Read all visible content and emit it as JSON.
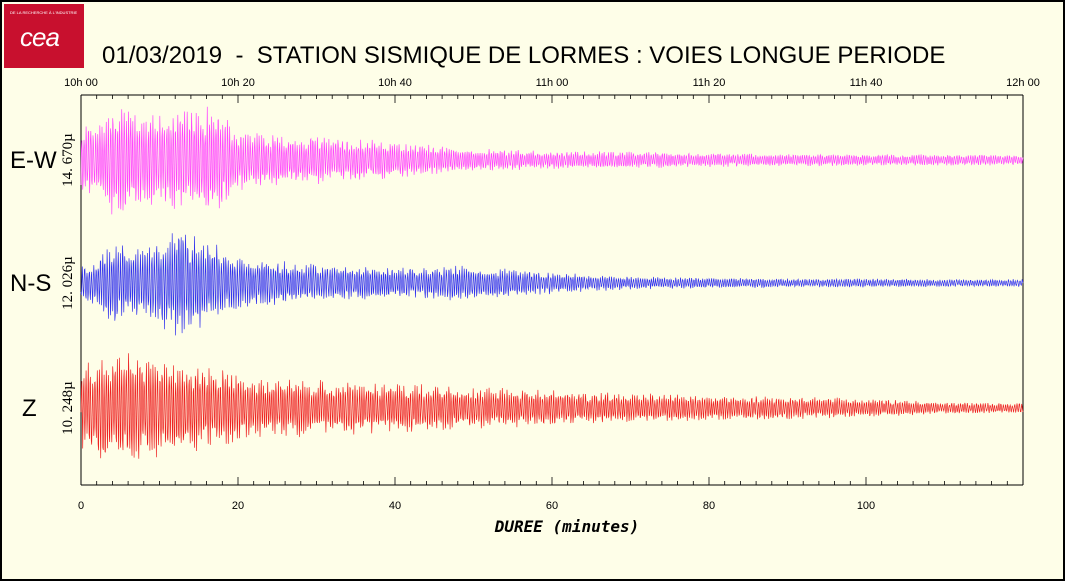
{
  "logo": {
    "text": "cea",
    "tagline": "DE LA RECHERCHE À L'INDUSTRIE"
  },
  "title": "01/03/2019  -  STATION SISMIQUE DE LORMES : VOIES LONGUE PERIODE",
  "chart_data": {
    "type": "line",
    "title": "01/03/2019  -  STATION SISMIQUE DE LORMES : VOIES LONGUE PERIODE",
    "xlabel": "DUREE  (minutes)",
    "xlim": [
      0,
      120
    ],
    "x_ticks": [
      0,
      20,
      40,
      60,
      80,
      100
    ],
    "top_time_ticks": [
      "10h 00",
      "10h 20",
      "10h 40",
      "11h 00",
      "11h 20",
      "11h 40",
      "12h 00"
    ],
    "series": [
      {
        "name": "E-W",
        "scale": "14. 670µ",
        "color": "#ff44ff",
        "envelope": {
          "t": [
            0,
            2,
            5,
            8,
            12,
            17,
            20,
            25,
            30,
            40,
            50,
            60,
            70,
            80,
            90,
            100,
            110,
            120
          ],
          "amp": [
            0.55,
            0.6,
            1.0,
            0.7,
            0.8,
            0.85,
            0.5,
            0.4,
            0.38,
            0.28,
            0.18,
            0.14,
            0.13,
            0.11,
            0.1,
            0.09,
            0.09,
            0.08
          ]
        }
      },
      {
        "name": "N-S",
        "scale": "12. 026µ",
        "color": "#3333ee",
        "envelope": {
          "t": [
            0,
            2,
            4,
            8,
            12,
            16,
            20,
            25,
            30,
            40,
            50,
            60,
            70,
            80,
            90,
            100,
            110,
            120
          ],
          "amp": [
            0.3,
            0.45,
            0.8,
            0.6,
            1.0,
            0.8,
            0.5,
            0.42,
            0.36,
            0.3,
            0.32,
            0.2,
            0.12,
            0.1,
            0.08,
            0.08,
            0.07,
            0.07
          ]
        }
      },
      {
        "name": "Z",
        "scale": "10. 248µ",
        "color": "#ee2222",
        "envelope": {
          "t": [
            0,
            2,
            5,
            8,
            12,
            16,
            20,
            25,
            30,
            40,
            50,
            60,
            70,
            80,
            90,
            100,
            110,
            120
          ],
          "amp": [
            0.7,
            0.85,
            0.95,
            1.0,
            0.8,
            0.7,
            0.6,
            0.5,
            0.48,
            0.42,
            0.36,
            0.3,
            0.25,
            0.22,
            0.2,
            0.16,
            0.1,
            0.08
          ]
        }
      }
    ]
  }
}
